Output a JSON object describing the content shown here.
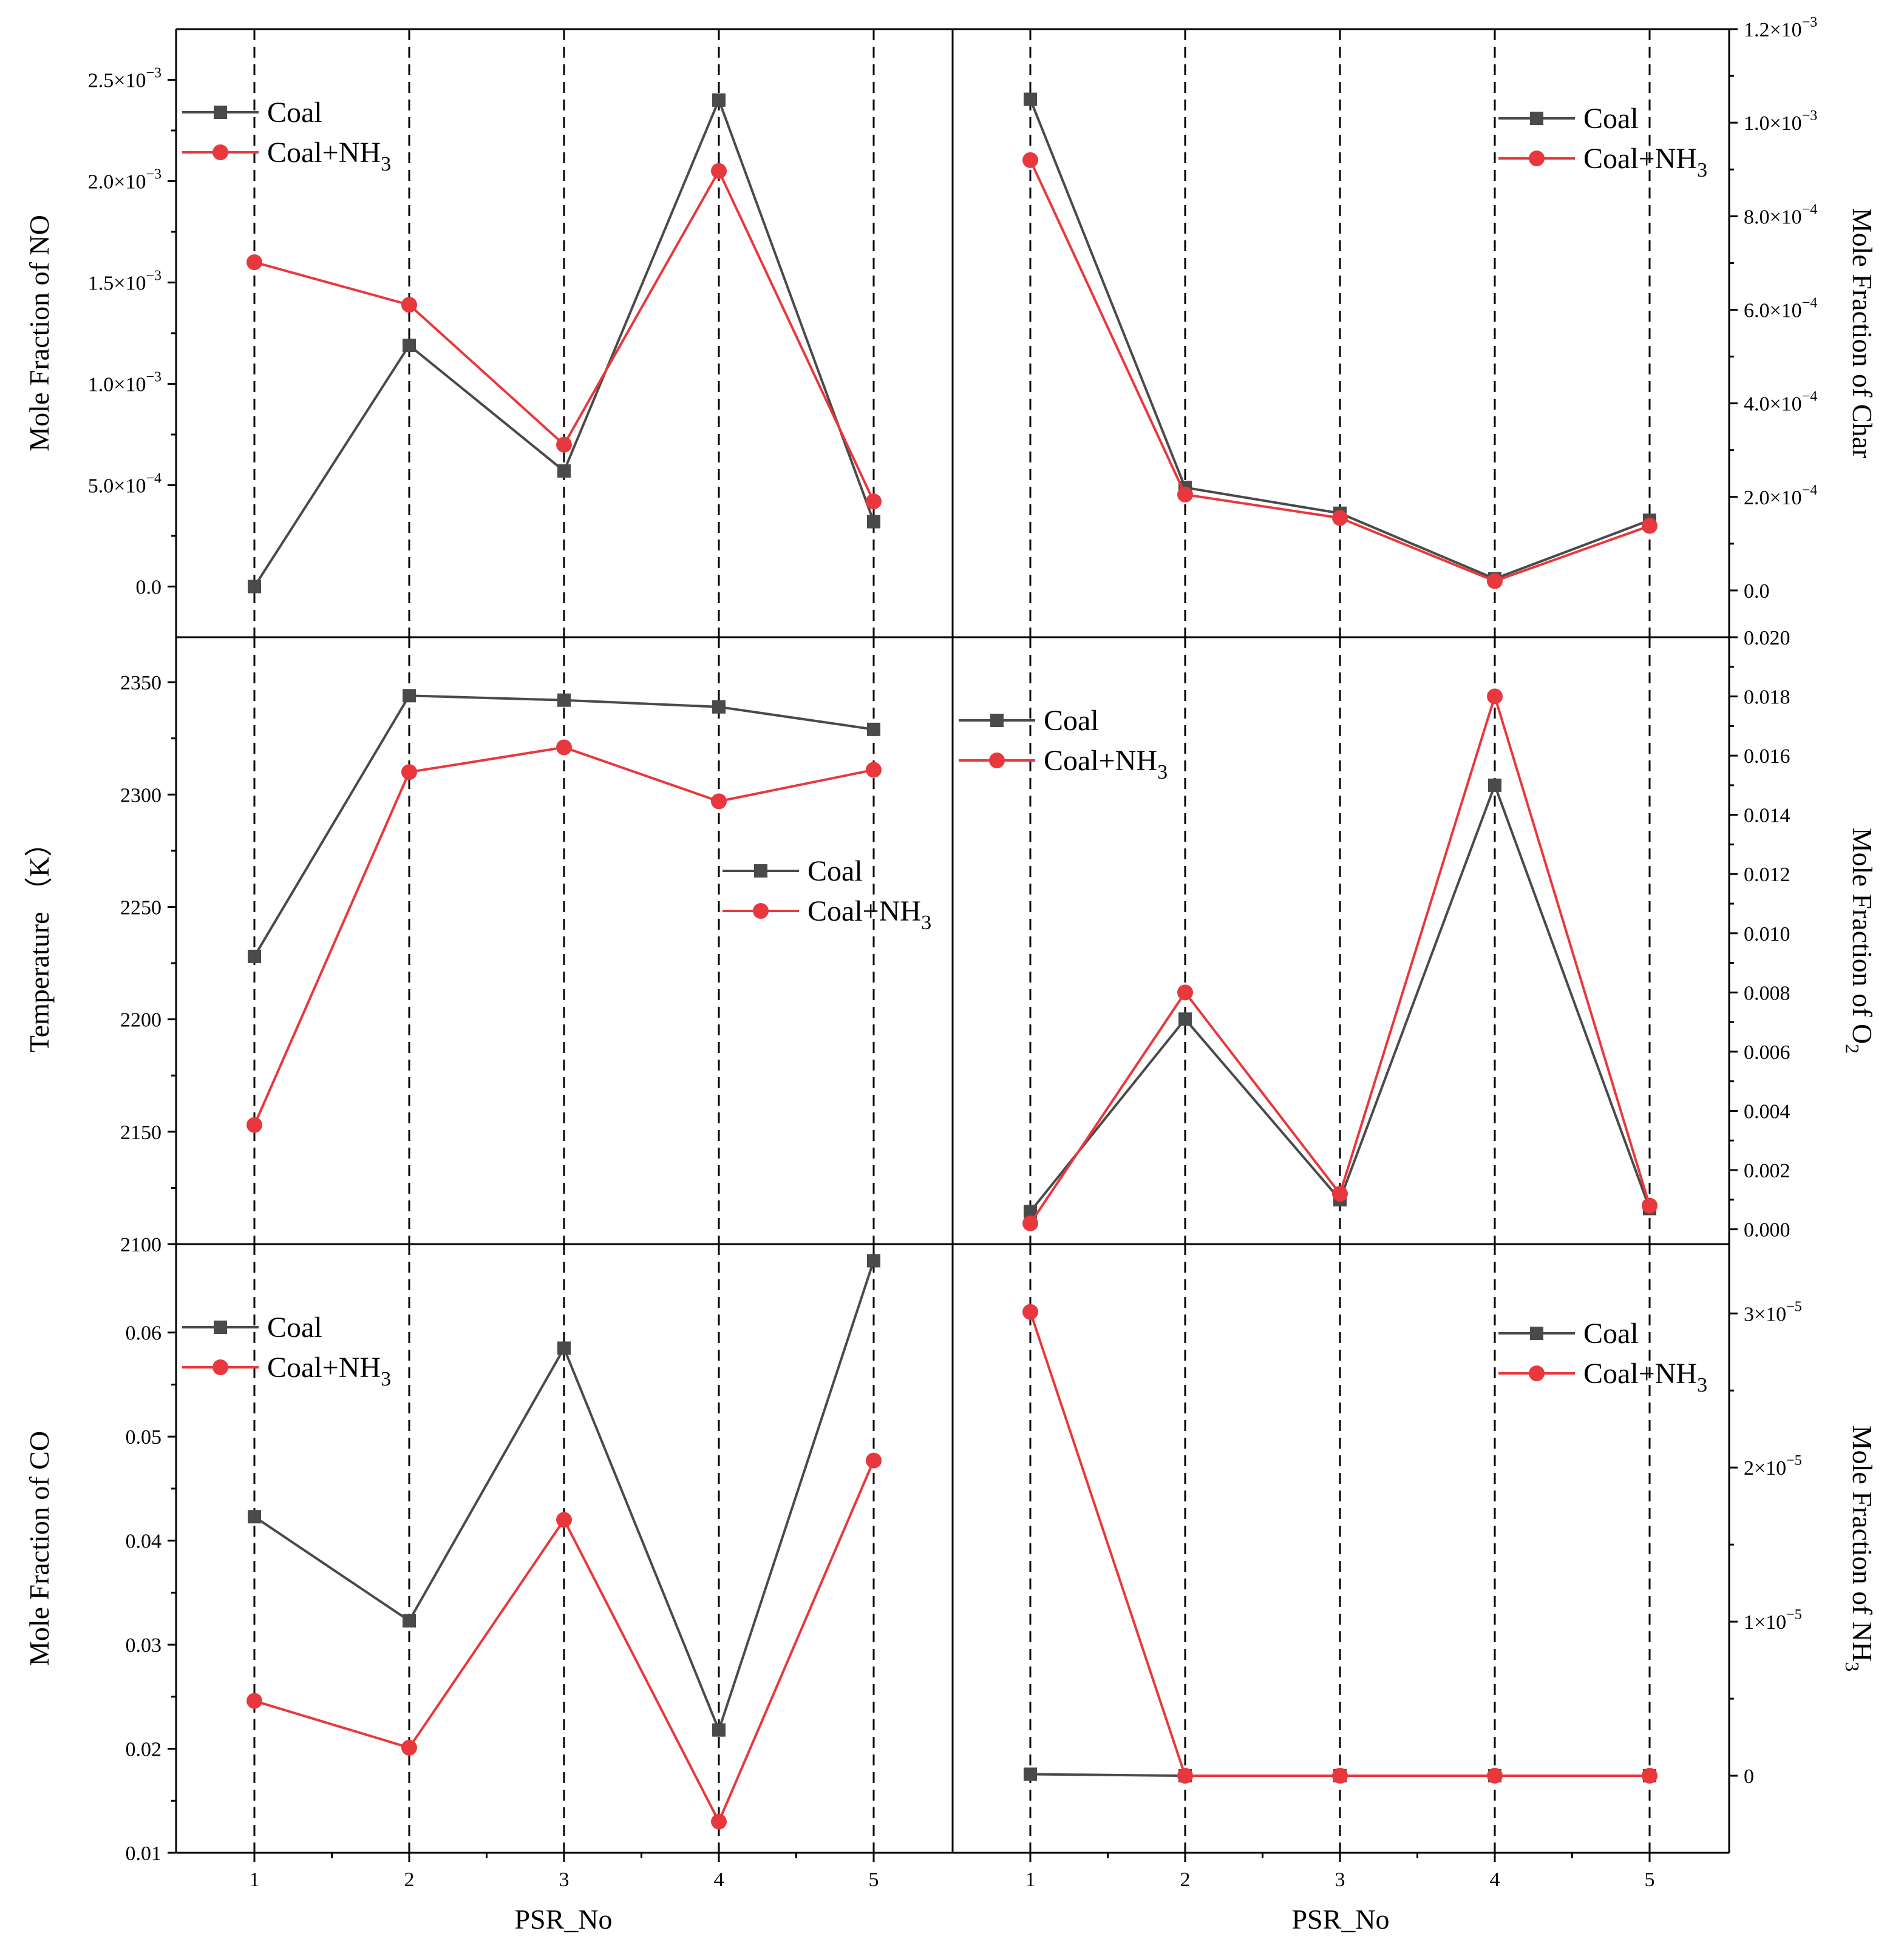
{
  "figure": {
    "x_axis_title": "PSR_No",
    "x_ticks": [
      "1",
      "2",
      "3",
      "4",
      "5"
    ]
  },
  "colors": {
    "coal": "#4a4a4a",
    "coal_nh3": "#e8383d"
  },
  "chart_data": [
    {
      "id": "no",
      "type": "line",
      "ylabel": "Mole Fraction of NO",
      "ylabel_sub": "",
      "ylabel_after": "",
      "x": [
        1,
        2,
        3,
        4,
        5
      ],
      "ylim": [
        -0.00025,
        0.00275
      ],
      "yticks": [
        0,
        0.0005,
        0.001,
        0.0015,
        0.002,
        0.0025
      ],
      "ytick_labels": [
        [
          "0.0",
          ""
        ],
        [
          "5.0×10",
          "−4"
        ],
        [
          "1.0×10",
          "−3"
        ],
        [
          "1.5×10",
          "−3"
        ],
        [
          "2.0×10",
          "−3"
        ],
        [
          "2.5×10",
          "−3"
        ]
      ],
      "legend": "top-left",
      "series": [
        {
          "name": "Coal",
          "name_sub": "",
          "values": [
            0.0,
            0.00119,
            0.00057,
            0.0024,
            0.00032
          ]
        },
        {
          "name": "Coal+NH",
          "name_sub": "3",
          "values": [
            0.0016,
            0.00139,
            0.0007,
            0.00205,
            0.00042
          ]
        }
      ]
    },
    {
      "id": "char",
      "type": "line",
      "ylabel": "Mole Fraction of  Char",
      "ylabel_sub": "",
      "ylabel_after": "",
      "x": [
        1,
        2,
        3,
        4,
        5
      ],
      "ylim": [
        -0.0001,
        0.0012
      ],
      "yticks": [
        0,
        0.0002,
        0.0004,
        0.0006,
        0.0008,
        0.001,
        0.0012
      ],
      "ytick_labels": [
        [
          "0.0",
          ""
        ],
        [
          "2.0×10",
          "−4"
        ],
        [
          "4.0×10",
          "−4"
        ],
        [
          "6.0×10",
          "−4"
        ],
        [
          "8.0×10",
          "−4"
        ],
        [
          "1.0×10",
          "−3"
        ],
        [
          "1.2×10",
          "−3"
        ]
      ],
      "legend": "top-right",
      "series": [
        {
          "name": "Coal",
          "name_sub": "",
          "values": [
            0.00105,
            0.00022,
            0.000165,
            2.5e-05,
            0.00015
          ]
        },
        {
          "name": "Coal+NH",
          "name_sub": "3",
          "values": [
            0.00092,
            0.000205,
            0.000155,
            2e-05,
            0.000138
          ]
        }
      ]
    },
    {
      "id": "temperature",
      "type": "line",
      "ylabel": "Temperature （K）",
      "ylabel_sub": "",
      "ylabel_after": "",
      "x": [
        1,
        2,
        3,
        4,
        5
      ],
      "ylim": [
        2100,
        2370
      ],
      "yticks": [
        2100,
        2150,
        2200,
        2250,
        2300,
        2350
      ],
      "ytick_labels": [
        [
          "2100",
          ""
        ],
        [
          "2150",
          ""
        ],
        [
          "2200",
          ""
        ],
        [
          "2250",
          ""
        ],
        [
          "2300",
          ""
        ],
        [
          "2350",
          ""
        ]
      ],
      "legend": "center-right",
      "series": [
        {
          "name": "Coal",
          "name_sub": "",
          "values": [
            2228,
            2344,
            2342,
            2339,
            2329
          ]
        },
        {
          "name": "Coal+NH",
          "name_sub": "3",
          "values": [
            2153,
            2310,
            2321,
            2297,
            2311
          ]
        }
      ]
    },
    {
      "id": "o2",
      "type": "line",
      "ylabel": "Mole Fraction of  O",
      "ylabel_sub": "2",
      "ylabel_after": "",
      "x": [
        1,
        2,
        3,
        4,
        5
      ],
      "ylim": [
        -0.0005,
        0.02
      ],
      "yticks": [
        0,
        0.002,
        0.004,
        0.006,
        0.008,
        0.01,
        0.012,
        0.014,
        0.016,
        0.018,
        0.02
      ],
      "ytick_labels": [
        [
          "0.000",
          ""
        ],
        [
          "0.002",
          ""
        ],
        [
          "0.004",
          ""
        ],
        [
          "0.006",
          ""
        ],
        [
          "0.008",
          ""
        ],
        [
          "0.010",
          ""
        ],
        [
          "0.012",
          ""
        ],
        [
          "0.014",
          ""
        ],
        [
          "0.016",
          ""
        ],
        [
          "0.018",
          ""
        ],
        [
          "0.020",
          ""
        ]
      ],
      "legend": "top-left",
      "series": [
        {
          "name": "Coal",
          "name_sub": "",
          "values": [
            0.0006,
            0.0071,
            0.001,
            0.015,
            0.0007
          ]
        },
        {
          "name": "Coal+NH",
          "name_sub": "3",
          "values": [
            0.0002,
            0.008,
            0.0012,
            0.018,
            0.0008
          ]
        }
      ]
    },
    {
      "id": "co",
      "type": "line",
      "ylabel": "Mole Fraction of CO",
      "ylabel_sub": "",
      "ylabel_after": "",
      "x": [
        1,
        2,
        3,
        4,
        5
      ],
      "ylim": [
        0.01,
        0.0685
      ],
      "yticks": [
        0.01,
        0.02,
        0.03,
        0.04,
        0.05,
        0.06
      ],
      "ytick_labels": [
        [
          "0.01",
          ""
        ],
        [
          "0.02",
          ""
        ],
        [
          "0.03",
          ""
        ],
        [
          "0.04",
          ""
        ],
        [
          "0.05",
          ""
        ],
        [
          "0.06",
          ""
        ]
      ],
      "legend": "top-left",
      "series": [
        {
          "name": "Coal",
          "name_sub": "",
          "values": [
            0.0423,
            0.0323,
            0.0585,
            0.0218,
            0.0669
          ]
        },
        {
          "name": "Coal+NH",
          "name_sub": "3",
          "values": [
            0.0246,
            0.0201,
            0.042,
            0.013,
            0.0477
          ]
        }
      ]
    },
    {
      "id": "nh3",
      "type": "line",
      "ylabel": "Mole Fraction of  NH",
      "ylabel_sub": "3",
      "ylabel_after": "",
      "x": [
        1,
        2,
        3,
        4,
        5
      ],
      "ylim": [
        -5e-06,
        3.45e-05
      ],
      "yticks": [
        0,
        1e-05,
        2e-05,
        3e-05
      ],
      "ytick_labels": [
        [
          "0",
          ""
        ],
        [
          "1×10",
          "−5"
        ],
        [
          "2×10",
          "−5"
        ],
        [
          "3×10",
          "−5"
        ]
      ],
      "legend": "top-right",
      "series": [
        {
          "name": "Coal",
          "name_sub": "",
          "values": [
            1e-07,
            0.0,
            0.0,
            0.0,
            0.0
          ]
        },
        {
          "name": "Coal+NH",
          "name_sub": "3",
          "values": [
            3.01e-05,
            0.0,
            0.0,
            0.0,
            0.0
          ]
        }
      ]
    }
  ]
}
